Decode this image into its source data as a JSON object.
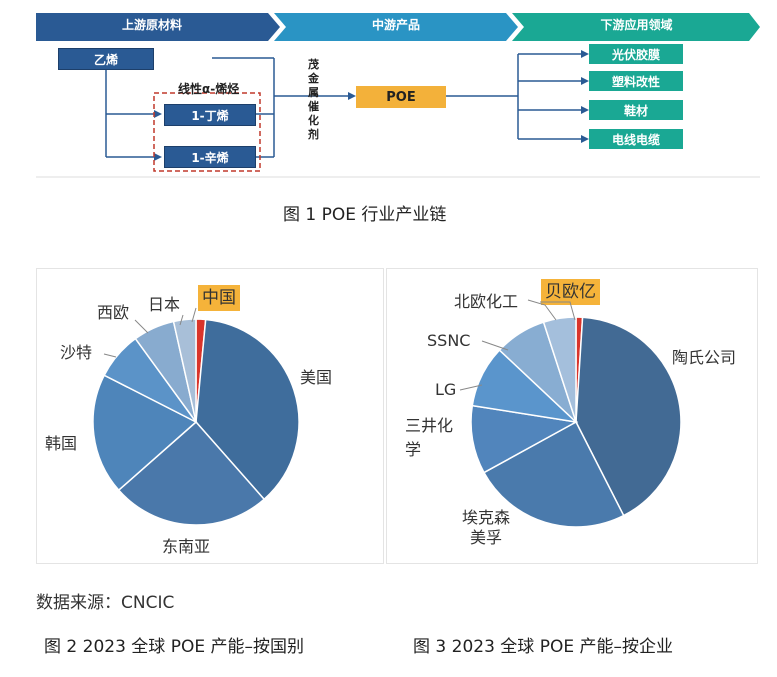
{
  "figure1": {
    "stages": [
      "上游原材料",
      "中游产品",
      "下游应用领域"
    ],
    "ethylene": "乙烯",
    "alpha_olefin_title": "线性α-烯烃",
    "butene": "1-丁烯",
    "octene": "1-辛烯",
    "catalyst": "茂金属催化剂",
    "product": "POE",
    "applications": [
      "光伏胶膜",
      "塑料改性",
      "鞋材",
      "电线电缆"
    ],
    "caption": "图 1  POE 行业产业链",
    "colors": {
      "stage_dark": "#2a5a94",
      "stage_mid": "#2a94c4",
      "stage_teal": "#1aa894",
      "orange": "#f3b13a"
    }
  },
  "chart_data": [
    {
      "type": "pie",
      "title": "",
      "highlight_label": "中国",
      "slices": [
        {
          "label": "中国",
          "value": 1.5,
          "color": "#d9342b"
        },
        {
          "label": "美国",
          "value": 37,
          "color": "#3f6d9c"
        },
        {
          "label": "东南亚",
          "value": 25,
          "color": "#4a78aa"
        },
        {
          "label": "韩国",
          "value": 19,
          "color": "#4e85ba"
        },
        {
          "label": "沙特",
          "value": 7.5,
          "color": "#5b93c8"
        },
        {
          "label": "西欧",
          "value": 6.5,
          "color": "#88abcf"
        },
        {
          "label": "日本",
          "value": 3.5,
          "color": "#a8bfd8"
        }
      ]
    },
    {
      "type": "pie",
      "title": "",
      "highlight_label": "贝欧亿",
      "slices": [
        {
          "label": "贝欧亿",
          "value": 1,
          "color": "#d9342b"
        },
        {
          "label": "陶氏公司",
          "value": 41.5,
          "color": "#426a94"
        },
        {
          "label": "埃克森美孚",
          "value": 24.5,
          "color": "#4a7aac"
        },
        {
          "label": "三井化学",
          "value": 10.5,
          "color": "#5185bc"
        },
        {
          "label": "LG",
          "value": 9.5,
          "color": "#5a95cc"
        },
        {
          "label": "SSNC",
          "value": 8,
          "color": "#88add2"
        },
        {
          "label": "北欧化工",
          "value": 5,
          "color": "#a4bfdc"
        }
      ]
    }
  ],
  "source_note": "数据来源：CNCIC",
  "caption2": "图 2 2023 全球 POE 产能–按国别",
  "caption3": "图 3 2023 全球 POE 产能–按企业"
}
